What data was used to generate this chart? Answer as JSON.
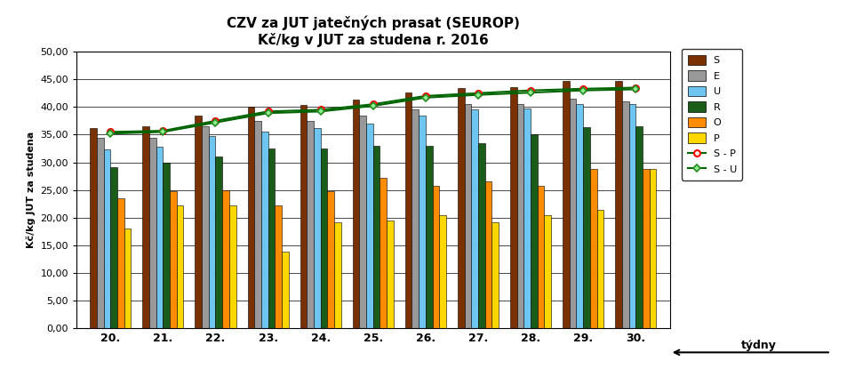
{
  "title_line1": "CZV za JUT jatečných prasat (SEUROP)",
  "title_line2": "Kč/kg v JUT za studena r. 2016",
  "xlabel_label": "týdny",
  "ylabel": "Kč/kg JUT za studena",
  "weeks": [
    "20.",
    "21.",
    "22.",
    "23.",
    "24.",
    "25.",
    "26.",
    "27.",
    "28.",
    "29.",
    "30."
  ],
  "S": [
    36.2,
    36.5,
    38.5,
    40.0,
    40.4,
    41.3,
    42.6,
    43.5,
    43.6,
    44.7,
    44.7
  ],
  "E": [
    34.5,
    34.5,
    36.5,
    37.5,
    37.5,
    38.5,
    39.5,
    40.5,
    40.5,
    41.5,
    41.0
  ],
  "U": [
    32.3,
    32.8,
    34.7,
    35.5,
    36.2,
    37.0,
    38.5,
    39.5,
    39.7,
    40.5,
    40.5
  ],
  "R": [
    29.2,
    30.0,
    31.0,
    32.5,
    32.5,
    33.0,
    33.0,
    33.5,
    35.0,
    36.3,
    36.5
  ],
  "O": [
    23.5,
    24.8,
    24.9,
    22.2,
    24.8,
    27.2,
    25.8,
    26.5,
    25.7,
    28.8,
    28.8
  ],
  "P": [
    18.0,
    22.2,
    22.2,
    13.8,
    19.2,
    19.5,
    20.5,
    19.2,
    20.5,
    21.5,
    28.8
  ],
  "SP": [
    35.5,
    35.7,
    37.5,
    39.2,
    39.5,
    40.5,
    42.0,
    42.5,
    43.0,
    43.3,
    43.5
  ],
  "SU": [
    35.2,
    35.5,
    37.2,
    38.9,
    39.2,
    40.2,
    41.7,
    42.2,
    42.6,
    43.0,
    43.2
  ],
  "colors": {
    "S": "#7B3000",
    "E": "#999999",
    "U": "#6EC6F0",
    "R": "#1A5C1A",
    "O": "#FF8C00",
    "P": "#FFD700"
  },
  "line_SP_color": "#006400",
  "line_SU_color": "#006400",
  "ylim": [
    0,
    50
  ],
  "yticks": [
    0,
    5,
    10,
    15,
    20,
    25,
    30,
    35,
    40,
    45,
    50
  ],
  "bar_width": 0.13,
  "figsize": [
    9.54,
    4.15
  ],
  "dpi": 100
}
